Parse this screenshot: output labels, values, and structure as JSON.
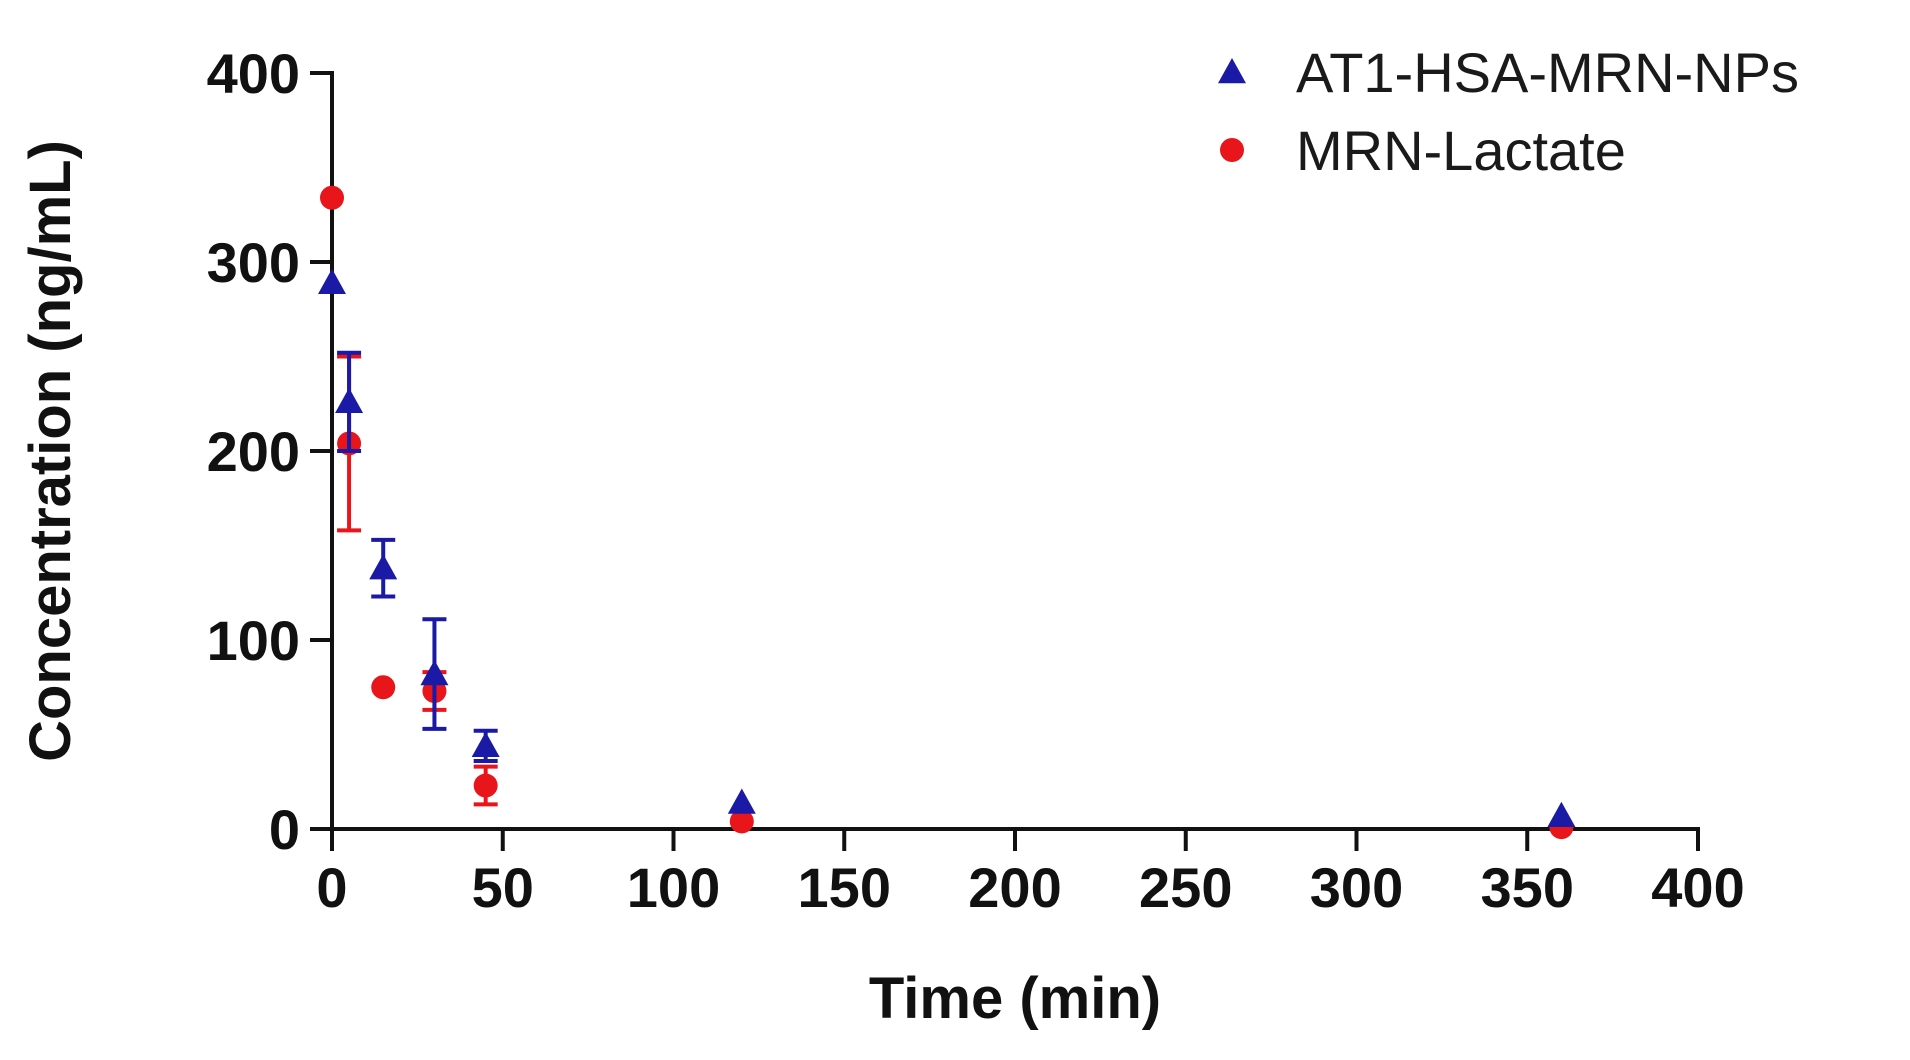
{
  "chart_data": {
    "type": "scatter",
    "title": "",
    "xlabel": "Time (min)",
    "ylabel": "Concentration (ng/mL)",
    "xlim": [
      0,
      400
    ],
    "ylim": [
      0,
      400
    ],
    "xticks": [
      0,
      50,
      100,
      150,
      200,
      250,
      300,
      350,
      400
    ],
    "yticks": [
      0,
      100,
      200,
      300,
      400
    ],
    "x_tick_labels": [
      "0",
      "50",
      "100",
      "150",
      "200",
      "250",
      "300",
      "350",
      "400"
    ],
    "y_tick_labels": [
      "0",
      "100",
      "200",
      "300",
      "400"
    ],
    "grid": false,
    "legend_position": "top-right",
    "series": [
      {
        "name": "AT1-HSA-MRN-NPs",
        "marker": "triangle",
        "color": "#1a1aa6",
        "points": [
          {
            "x": 0,
            "y": 289,
            "err": 0
          },
          {
            "x": 5,
            "y": 226,
            "err": 26
          },
          {
            "x": 15,
            "y": 138,
            "err": 15
          },
          {
            "x": 30,
            "y": 82,
            "err": 29
          },
          {
            "x": 45,
            "y": 44,
            "err": 8
          },
          {
            "x": 120,
            "y": 14,
            "err": 0
          },
          {
            "x": 360,
            "y": 7,
            "err": 0
          }
        ]
      },
      {
        "name": "MRN-Lactate",
        "marker": "circle",
        "color": "#e8161b",
        "points": [
          {
            "x": 0,
            "y": 334,
            "err": 0
          },
          {
            "x": 5,
            "y": 204,
            "err": 46
          },
          {
            "x": 15,
            "y": 75,
            "err": 0
          },
          {
            "x": 30,
            "y": 73,
            "err": 10
          },
          {
            "x": 45,
            "y": 23,
            "err": 10
          },
          {
            "x": 120,
            "y": 4,
            "err": 0
          },
          {
            "x": 360,
            "y": 1,
            "err": 0
          }
        ]
      }
    ]
  }
}
